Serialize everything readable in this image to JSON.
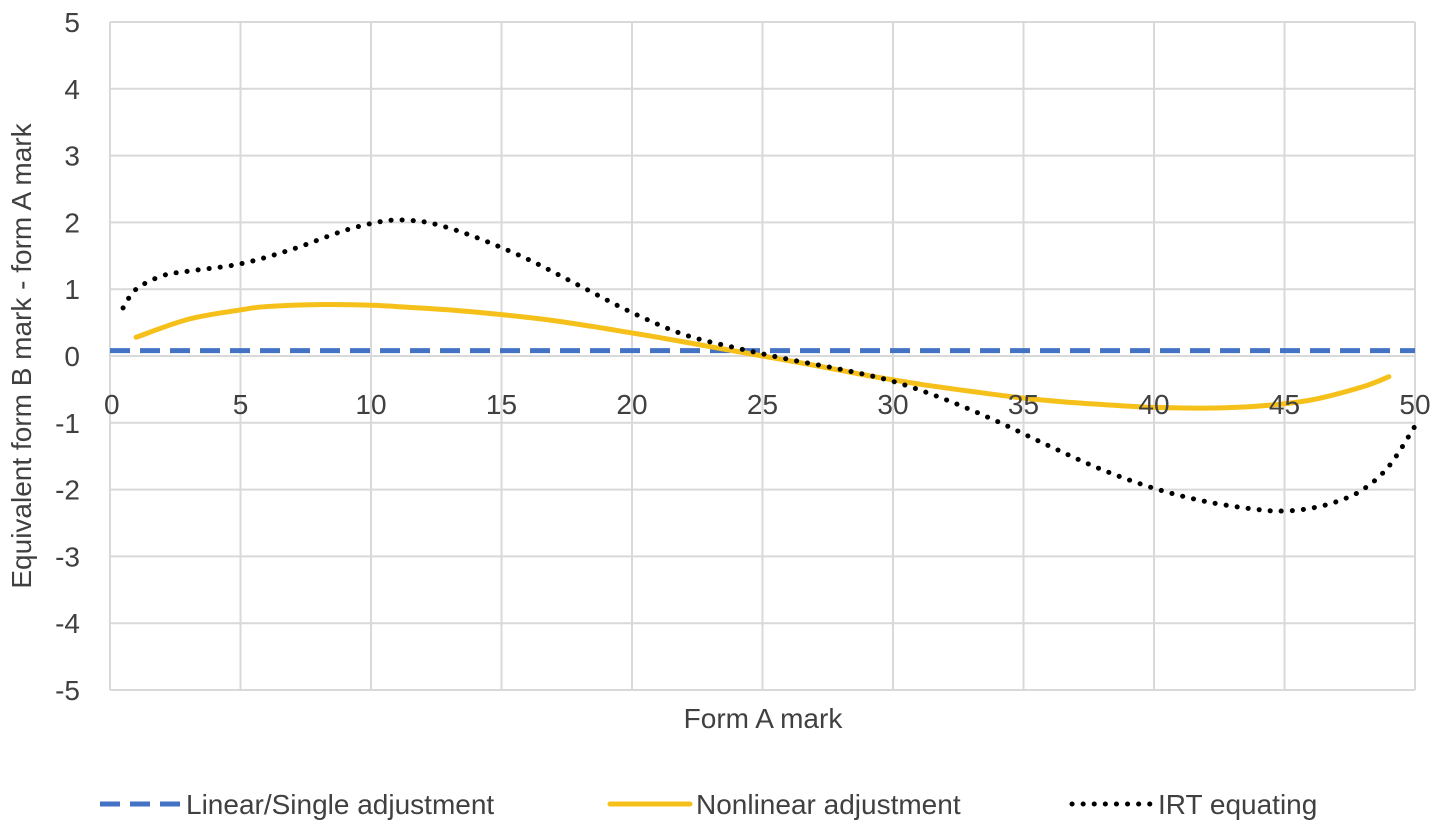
{
  "chart_data": {
    "type": "line",
    "title": "",
    "xlabel": "Form A mark",
    "ylabel": "Equivalent form B mark - form A mark",
    "xlim": [
      0,
      50
    ],
    "ylim": [
      -5,
      5
    ],
    "x_ticks": [
      0,
      5,
      10,
      15,
      20,
      25,
      30,
      35,
      40,
      45,
      50
    ],
    "y_ticks": [
      -5,
      -4,
      -3,
      -2,
      -1,
      0,
      1,
      2,
      3,
      4,
      5
    ],
    "x_tick_labels": [
      "0",
      "5",
      "10",
      "15",
      "20",
      "25",
      "30",
      "35",
      "40",
      "45",
      "50"
    ],
    "y_tick_labels": [
      "-5",
      "-4",
      "-3",
      "-2",
      "-1",
      "0",
      "1",
      "2",
      "3",
      "4",
      "5"
    ],
    "grid": true,
    "legend_position": "bottom",
    "series": [
      {
        "name": "Linear/Single adjustment",
        "color": "#4472C4",
        "style": "dashed",
        "x": [
          0,
          50
        ],
        "y": [
          0.08,
          0.08
        ]
      },
      {
        "name": "Nonlinear adjustment",
        "color": "#F5C01A",
        "style": "solid",
        "x": [
          1,
          3,
          5,
          6,
          8,
          10,
          11,
          13,
          15,
          17,
          19,
          21,
          23,
          25,
          27,
          29,
          31,
          33,
          35,
          37,
          39,
          40,
          42,
          44,
          46,
          48,
          49
        ],
        "y": [
          0.28,
          0.55,
          0.69,
          0.74,
          0.77,
          0.76,
          0.74,
          0.69,
          0.62,
          0.53,
          0.41,
          0.28,
          0.14,
          0.0,
          -0.14,
          -0.29,
          -0.42,
          -0.53,
          -0.63,
          -0.7,
          -0.75,
          -0.77,
          -0.78,
          -0.75,
          -0.66,
          -0.46,
          -0.31
        ]
      },
      {
        "name": "IRT equating",
        "color": "#000000",
        "style": "dotted",
        "x": [
          0.5,
          1,
          2,
          3,
          5,
          7,
          9,
          10.5,
          11.5,
          12.5,
          14,
          16,
          18,
          20,
          22,
          24,
          26,
          28,
          30,
          32,
          34,
          36,
          38,
          40,
          42,
          44,
          45,
          46,
          47,
          48,
          49,
          50
        ],
        "y": [
          0.72,
          1.0,
          1.2,
          1.27,
          1.38,
          1.6,
          1.88,
          2.02,
          2.03,
          1.97,
          1.78,
          1.45,
          1.05,
          0.65,
          0.32,
          0.12,
          -0.05,
          -0.2,
          -0.38,
          -0.65,
          -0.98,
          -1.35,
          -1.7,
          -1.98,
          -2.18,
          -2.3,
          -2.32,
          -2.28,
          -2.18,
          -2.0,
          -1.65,
          -1.05
        ]
      }
    ]
  }
}
